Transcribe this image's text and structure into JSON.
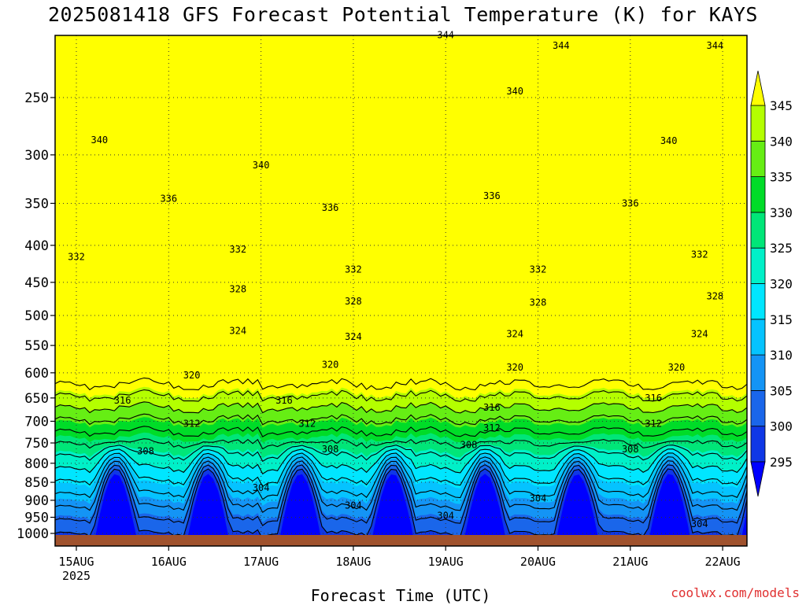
{
  "title": "2025081418 GFS Forecast Potential Temperature (K) for KAYS",
  "credit": "coolwx.com/models",
  "colors": {
    "ground": "#a0522d",
    "credit": "#e03030",
    "fills": [
      "#0000ff",
      "#0f37e6",
      "#1a66ea",
      "#1494f5",
      "#05c3ff",
      "#00e6ff",
      "#00f0c8",
      "#00e678",
      "#00dc28",
      "#66ee14",
      "#b4ff00",
      "#ffff00"
    ]
  },
  "chart_data": {
    "type": "contour",
    "title": "2025081418 GFS Forecast Potential Temperature (K) for KAYS",
    "xlabel": "Forecast Time (UTC)",
    "ylabel": "",
    "x_ticks": [
      "15AUG",
      "16AUG",
      "17AUG",
      "18AUG",
      "19AUG",
      "20AUG",
      "21AUG",
      "22AUG"
    ],
    "x_subtick": "2025",
    "y_ticks": [
      250,
      300,
      350,
      400,
      450,
      500,
      550,
      600,
      650,
      700,
      750,
      800,
      850,
      900,
      950,
      1000
    ],
    "y_scale": "log",
    "y_reversed": true,
    "grid": true,
    "colorbar": {
      "levels": [
        295,
        300,
        305,
        310,
        315,
        320,
        325,
        330,
        335,
        340,
        345
      ],
      "extend": "both",
      "placement": "right"
    },
    "contour_interval_K": 4,
    "contour_labels": [
      {
        "value": 344,
        "positions": [
          [
            "14AUG 18Z",
            230
          ],
          [
            "19AUG 00Z",
            205
          ],
          [
            "20AUG 06Z",
            212
          ],
          [
            "21AUG 22Z",
            212
          ]
        ]
      },
      {
        "value": 340,
        "positions": [
          [
            "15AUG 06Z",
            286
          ],
          [
            "17AUG 00Z",
            310
          ],
          [
            "19AUG 18Z",
            245
          ],
          [
            "21AUG 10Z",
            287
          ]
        ]
      },
      {
        "value": 336,
        "positions": [
          [
            "16AUG 00Z",
            345
          ],
          [
            "17AUG 18Z",
            355
          ],
          [
            "19AUG 12Z",
            342
          ],
          [
            "21AUG 00Z",
            350
          ]
        ]
      },
      {
        "value": 332,
        "positions": [
          [
            "15AUG 00Z",
            415
          ],
          [
            "16AUG 18Z",
            405
          ],
          [
            "18AUG 00Z",
            432
          ],
          [
            "20AUG 00Z",
            432
          ],
          [
            "21AUG 18Z",
            412
          ]
        ]
      },
      {
        "value": 328,
        "positions": [
          [
            "14AUG 18Z",
            475
          ],
          [
            "16AUG 18Z",
            460
          ],
          [
            "18AUG 00Z",
            478
          ],
          [
            "20AUG 00Z",
            480
          ],
          [
            "21AUG 22Z",
            470
          ]
        ]
      },
      {
        "value": 324,
        "positions": [
          [
            "14AUG 18Z",
            538
          ],
          [
            "16AUG 18Z",
            525
          ],
          [
            "18AUG 00Z",
            535
          ],
          [
            "19AUG 18Z",
            530
          ],
          [
            "21AUG 18Z",
            530
          ]
        ]
      },
      {
        "value": 320,
        "positions": [
          [
            "16AUG 06Z",
            605
          ],
          [
            "17AUG 18Z",
            585
          ],
          [
            "19AUG 18Z",
            590
          ],
          [
            "21AUG 12Z",
            590
          ]
        ]
      },
      {
        "value": 316,
        "positions": [
          [
            "15AUG 12Z",
            655
          ],
          [
            "17AUG 06Z",
            655
          ],
          [
            "19AUG 12Z",
            670
          ],
          [
            "21AUG 06Z",
            650
          ]
        ]
      },
      {
        "value": 312,
        "positions": [
          [
            "16AUG 06Z",
            705
          ],
          [
            "17AUG 12Z",
            705
          ],
          [
            "19AUG 12Z",
            715
          ],
          [
            "21AUG 06Z",
            705
          ]
        ]
      },
      {
        "value": 308,
        "positions": [
          [
            "15AUG 18Z",
            770
          ],
          [
            "17AUG 18Z",
            765
          ],
          [
            "19AUG 06Z",
            755
          ],
          [
            "21AUG 00Z",
            765
          ]
        ]
      },
      {
        "value": 304,
        "positions": [
          [
            "17AUG 00Z",
            865
          ],
          [
            "18AUG 00Z",
            915
          ],
          [
            "19AUG 00Z",
            945
          ],
          [
            "20AUG 00Z",
            895
          ],
          [
            "21AUG 18Z",
            970
          ]
        ]
      }
    ]
  }
}
